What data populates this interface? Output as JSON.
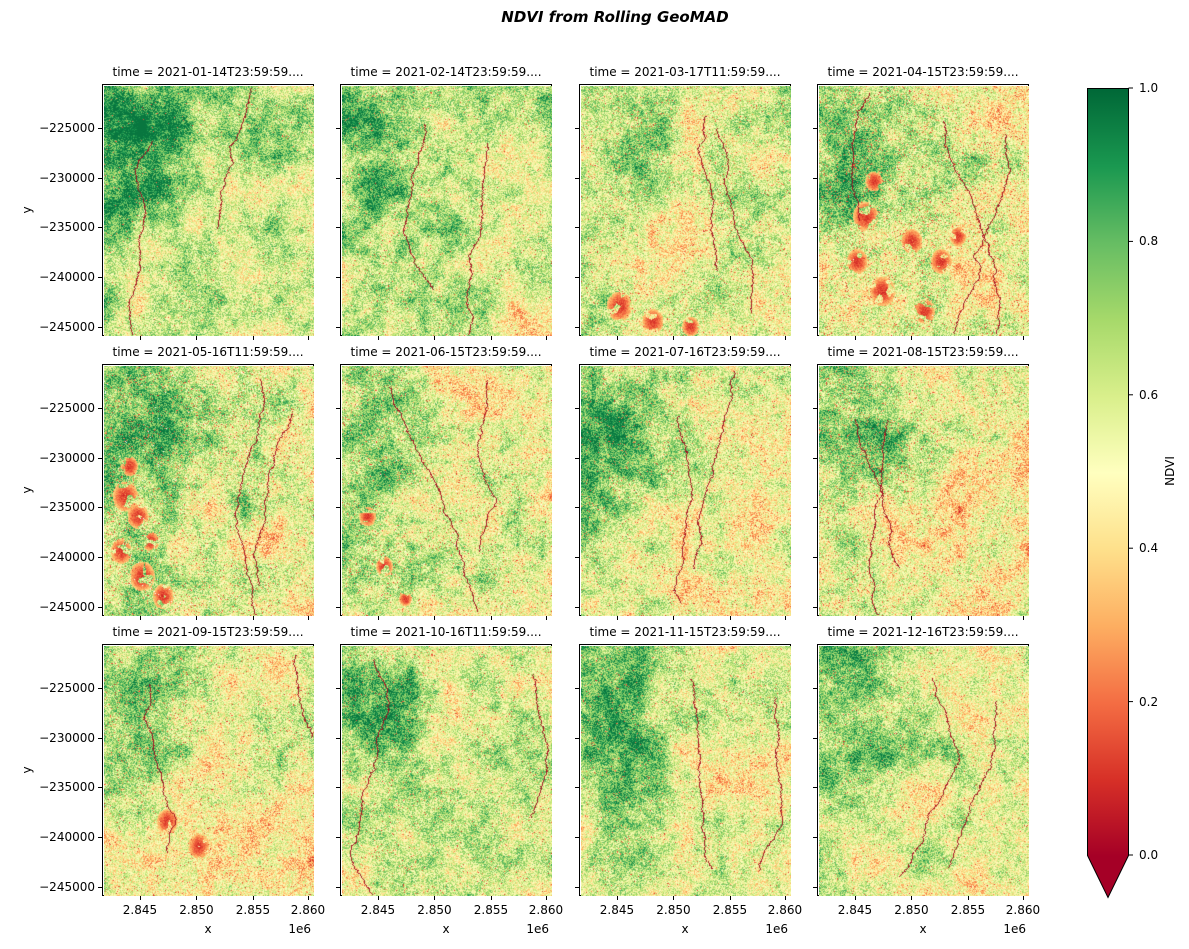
{
  "figure": {
    "title": "NDVI from Rolling GeoMAD"
  },
  "colors": {
    "background": "#ffffff",
    "text": "#000000",
    "cmap_anchors": [
      "#a50026",
      "#d73027",
      "#f46d43",
      "#fdae61",
      "#fee08b",
      "#ffffbf",
      "#d9ef8b",
      "#a6d96a",
      "#66bd63",
      "#1a9850",
      "#006837"
    ]
  },
  "chart_data": {
    "type": "heatmap",
    "title": "NDVI from Rolling GeoMAD",
    "grid": {
      "rows": 3,
      "cols": 4
    },
    "xlabel": "x",
    "ylabel": "y",
    "x_offset_label": "1e6",
    "xtick_labels": [
      "2.845",
      "2.850",
      "2.855",
      "2.860"
    ],
    "ytick_labels": [
      "−225000",
      "−230000",
      "−235000",
      "−240000",
      "−245000"
    ],
    "x_range_1e6": [
      2.8417,
      2.8604
    ],
    "y_range": [
      -220700,
      -245800
    ],
    "colorbar": {
      "label": "NDVI",
      "cmap": "RdYlGn",
      "vmin": 0.0,
      "vmax": 1.0,
      "extend": "min",
      "tick_labels": [
        "1.0",
        "0.8",
        "0.6",
        "0.4",
        "0.2",
        "0.0"
      ]
    },
    "facets": [
      {
        "title": "time = 2021-01-14T23:59:59....",
        "base": 0.63,
        "blob": 0.24,
        "red": 0.01,
        "white": 0,
        "gx": 0.1,
        "gy": 0.06,
        "rivers": 2,
        "patches": []
      },
      {
        "title": "time = 2021-02-14T23:59:59....",
        "base": 0.61,
        "blob": 0.21,
        "red": 0.013,
        "white": 0,
        "gx": 0.08,
        "gy": 0.05,
        "rivers": 2,
        "patches": []
      },
      {
        "title": "time = 2021-03-17T11:59:59....",
        "base": 0.57,
        "blob": 0.13,
        "red": 0.03,
        "white": 0,
        "gx": 0.06,
        "gy": 0.02,
        "rivers": 2,
        "patches": [
          [
            0.18,
            0.88,
            0.06
          ],
          [
            0.34,
            0.94,
            0.05
          ],
          [
            0.52,
            0.96,
            0.04
          ]
        ]
      },
      {
        "title": "time = 2021-04-15T23:59:59....",
        "base": 0.57,
        "blob": 0.27,
        "red": 0.045,
        "white": 0.001,
        "gx": 0.08,
        "gy": 0.03,
        "rivers": 3,
        "patches": [
          [
            0.22,
            0.52,
            0.06
          ],
          [
            0.18,
            0.7,
            0.05
          ],
          [
            0.3,
            0.82,
            0.06
          ],
          [
            0.44,
            0.62,
            0.05
          ],
          [
            0.58,
            0.7,
            0.05
          ],
          [
            0.26,
            0.38,
            0.04
          ],
          [
            0.5,
            0.9,
            0.05
          ],
          [
            0.66,
            0.6,
            0.04
          ]
        ]
      },
      {
        "title": "time = 2021-05-16T11:59:59....",
        "base": 0.58,
        "blob": 0.25,
        "red": 0.038,
        "white": 0.004,
        "gx": 0.1,
        "gy": 0.02,
        "rivers": 2,
        "patches": [
          [
            0.1,
            0.52,
            0.06
          ],
          [
            0.16,
            0.6,
            0.05
          ],
          [
            0.08,
            0.74,
            0.05
          ],
          [
            0.18,
            0.84,
            0.06
          ],
          [
            0.28,
            0.92,
            0.05
          ],
          [
            0.12,
            0.4,
            0.04
          ],
          [
            0.22,
            0.7,
            0.04
          ]
        ]
      },
      {
        "title": "time = 2021-06-15T23:59:59....",
        "base": 0.56,
        "blob": 0.19,
        "red": 0.028,
        "white": 0.0025,
        "gx": 0.08,
        "gy": 0.02,
        "rivers": 2,
        "patches": [
          [
            0.12,
            0.6,
            0.04
          ],
          [
            0.2,
            0.8,
            0.04
          ],
          [
            0.3,
            0.93,
            0.03
          ]
        ]
      },
      {
        "title": "time = 2021-07-16T23:59:59....",
        "base": 0.56,
        "blob": 0.25,
        "red": 0.026,
        "white": 0,
        "gx": 0.08,
        "gy": 0.04,
        "rivers": 2,
        "patches": []
      },
      {
        "title": "time = 2021-08-15T23:59:59....",
        "base": 0.5,
        "blob": 0.24,
        "red": 0.04,
        "white": 0,
        "gx": 0.1,
        "gy": 0.05,
        "rivers": 2,
        "patches": []
      },
      {
        "title": "time = 2021-09-15T23:59:59....",
        "base": 0.53,
        "blob": 0.17,
        "red": 0.028,
        "white": 0,
        "gx": 0.1,
        "gy": 0.04,
        "rivers": 2,
        "patches": [
          [
            0.3,
            0.7,
            0.05
          ],
          [
            0.45,
            0.8,
            0.05
          ]
        ]
      },
      {
        "title": "time = 2021-10-16T11:59:59....",
        "base": 0.56,
        "blob": 0.23,
        "red": 0.02,
        "white": 0,
        "gx": 0.08,
        "gy": 0.04,
        "rivers": 2,
        "patches": []
      },
      {
        "title": "time = 2021-11-15T23:59:59....",
        "base": 0.57,
        "blob": 0.25,
        "red": 0.018,
        "white": 0,
        "gx": 0.08,
        "gy": 0.04,
        "rivers": 2,
        "patches": []
      },
      {
        "title": "time = 2021-12-16T23:59:59....",
        "base": 0.58,
        "blob": 0.25,
        "red": 0.015,
        "white": 0,
        "gx": 0.08,
        "gy": 0.04,
        "rivers": 2,
        "patches": []
      }
    ]
  }
}
